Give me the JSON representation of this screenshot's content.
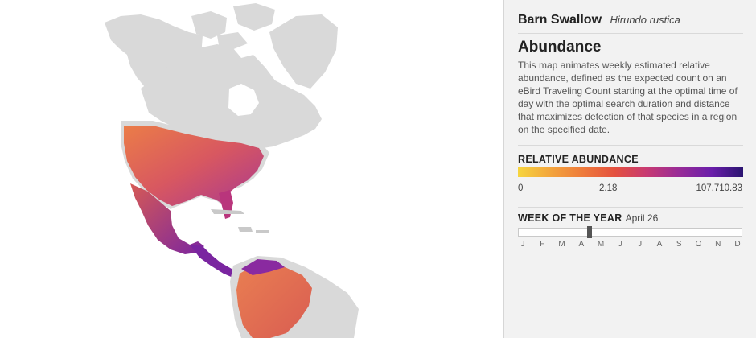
{
  "species": {
    "common_name": "Barn Swallow",
    "scientific_name": "Hirundo rustica"
  },
  "section": {
    "heading": "Abundance",
    "description": "This map animates weekly estimated relative abundance, defined as the expected count on an eBird Traveling Count starting at the optimal time of day with the optimal search duration and distance that maximizes detection of that species in a region on the specified date."
  },
  "legend": {
    "label": "RELATIVE ABUNDANCE",
    "min": "0",
    "mid": "2.18",
    "max": "107,710.83",
    "colors": [
      "#f6d53e",
      "#f3a63c",
      "#ee7a3b",
      "#e4513f",
      "#c83a72",
      "#9a2c96",
      "#6a1eaa",
      "#2a1470"
    ]
  },
  "week": {
    "label": "WEEK OF THE YEAR",
    "date": "April 26",
    "position_fraction": 0.32,
    "months": [
      "J",
      "F",
      "M",
      "A",
      "M",
      "J",
      "J",
      "A",
      "S",
      "O",
      "N",
      "D"
    ]
  },
  "map": {
    "land_color": "#d9d9d9",
    "border_color": "#ffffff"
  }
}
